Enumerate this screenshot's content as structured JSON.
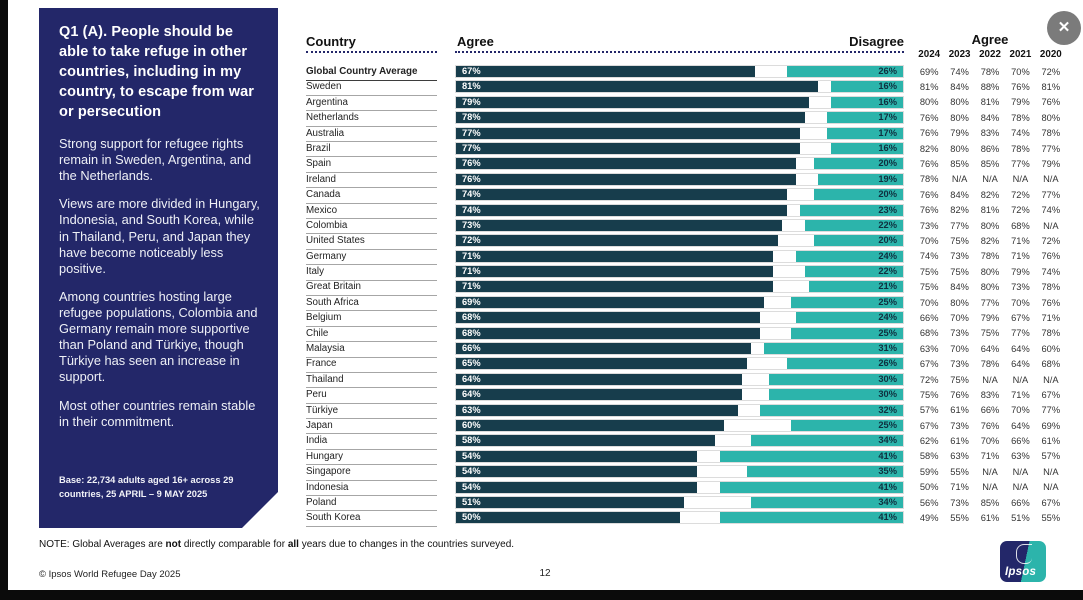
{
  "icons": {
    "close": "✕"
  },
  "panel": {
    "title": "Q1 (A). People should be able to take refuge in other countries, including in my country, to escape from war or persecution",
    "paragraphs": [
      "Strong support for refugee rights remain in Sweden, Argentina, and the Netherlands.",
      "Views are more divided in Hungary, Indonesia, and South Korea, while in Thailand, Peru, and Japan they have become noticeably less positive.",
      "Among countries hosting large refugee populations, Colombia and Germany remain more supportive than Poland and Türkiye, though Türkiye has seen an increase in support.",
      "Most other countries remain stable in their commitment."
    ],
    "base": "Base: 22,734 adults aged 16+ across 29 countries, 25 APRIL – 9 MAY 2025"
  },
  "chart_data": {
    "type": "bar",
    "title": "Q1 (A). People should be able to take refuge in other countries, including in my country, to escape from war or persecution",
    "orientation": "horizontal",
    "xlim": [
      0,
      100
    ],
    "legend_position": "none",
    "colors": {
      "agree_bar": "#173d4c",
      "disagree_bar": "#2cb4ab",
      "panel_navy": "#232769"
    },
    "columns": {
      "country": "Country",
      "agree": "Agree",
      "disagree": "Disagree",
      "years_header": "Agree",
      "years": [
        "2024",
        "2023",
        "2022",
        "2021",
        "2020"
      ]
    },
    "rows": [
      {
        "country": "Global Country Average",
        "agree": 67,
        "disagree": 26,
        "history": [
          "69%",
          "74%",
          "78%",
          "70%",
          "72%"
        ],
        "bold": true
      },
      {
        "country": "Sweden",
        "agree": 81,
        "disagree": 16,
        "history": [
          "81%",
          "84%",
          "88%",
          "76%",
          "81%"
        ]
      },
      {
        "country": "Argentina",
        "agree": 79,
        "disagree": 16,
        "history": [
          "80%",
          "80%",
          "81%",
          "79%",
          "76%"
        ]
      },
      {
        "country": "Netherlands",
        "agree": 78,
        "disagree": 17,
        "history": [
          "76%",
          "80%",
          "84%",
          "78%",
          "80%"
        ]
      },
      {
        "country": "Australia",
        "agree": 77,
        "disagree": 17,
        "history": [
          "76%",
          "79%",
          "83%",
          "74%",
          "78%"
        ]
      },
      {
        "country": "Brazil",
        "agree": 77,
        "disagree": 16,
        "history": [
          "82%",
          "80%",
          "86%",
          "78%",
          "77%"
        ]
      },
      {
        "country": "Spain",
        "agree": 76,
        "disagree": 20,
        "history": [
          "76%",
          "85%",
          "85%",
          "77%",
          "79%"
        ]
      },
      {
        "country": "Ireland",
        "agree": 76,
        "disagree": 19,
        "history": [
          "78%",
          "N/A",
          "N/A",
          "N/A",
          "N/A"
        ]
      },
      {
        "country": "Canada",
        "agree": 74,
        "disagree": 20,
        "history": [
          "76%",
          "84%",
          "82%",
          "72%",
          "77%"
        ]
      },
      {
        "country": "Mexico",
        "agree": 74,
        "disagree": 23,
        "history": [
          "76%",
          "82%",
          "81%",
          "72%",
          "74%"
        ]
      },
      {
        "country": "Colombia",
        "agree": 73,
        "disagree": 22,
        "history": [
          "73%",
          "77%",
          "80%",
          "68%",
          "N/A"
        ]
      },
      {
        "country": "United States",
        "agree": 72,
        "disagree": 20,
        "history": [
          "70%",
          "75%",
          "82%",
          "71%",
          "72%"
        ]
      },
      {
        "country": "Germany",
        "agree": 71,
        "disagree": 24,
        "history": [
          "74%",
          "73%",
          "78%",
          "71%",
          "76%"
        ]
      },
      {
        "country": "Italy",
        "agree": 71,
        "disagree": 22,
        "history": [
          "75%",
          "75%",
          "80%",
          "79%",
          "74%"
        ]
      },
      {
        "country": "Great Britain",
        "agree": 71,
        "disagree": 21,
        "history": [
          "75%",
          "84%",
          "80%",
          "73%",
          "78%"
        ]
      },
      {
        "country": "South Africa",
        "agree": 69,
        "disagree": 25,
        "history": [
          "70%",
          "80%",
          "77%",
          "70%",
          "76%"
        ]
      },
      {
        "country": "Belgium",
        "agree": 68,
        "disagree": 24,
        "history": [
          "66%",
          "70%",
          "79%",
          "67%",
          "71%"
        ]
      },
      {
        "country": "Chile",
        "agree": 68,
        "disagree": 25,
        "history": [
          "68%",
          "73%",
          "75%",
          "77%",
          "78%"
        ]
      },
      {
        "country": "Malaysia",
        "agree": 66,
        "disagree": 31,
        "history": [
          "63%",
          "70%",
          "64%",
          "64%",
          "60%"
        ]
      },
      {
        "country": "France",
        "agree": 65,
        "disagree": 26,
        "history": [
          "67%",
          "73%",
          "78%",
          "64%",
          "68%"
        ]
      },
      {
        "country": "Thailand",
        "agree": 64,
        "disagree": 30,
        "history": [
          "72%",
          "75%",
          "N/A",
          "N/A",
          "N/A"
        ]
      },
      {
        "country": "Peru",
        "agree": 64,
        "disagree": 30,
        "history": [
          "75%",
          "76%",
          "83%",
          "71%",
          "67%"
        ]
      },
      {
        "country": "Türkiye",
        "agree": 63,
        "disagree": 32,
        "history": [
          "57%",
          "61%",
          "66%",
          "70%",
          "77%"
        ]
      },
      {
        "country": "Japan",
        "agree": 60,
        "disagree": 25,
        "history": [
          "67%",
          "73%",
          "76%",
          "64%",
          "69%"
        ]
      },
      {
        "country": "India",
        "agree": 58,
        "disagree": 34,
        "history": [
          "62%",
          "61%",
          "70%",
          "66%",
          "61%"
        ]
      },
      {
        "country": "Hungary",
        "agree": 54,
        "disagree": 41,
        "history": [
          "58%",
          "63%",
          "71%",
          "63%",
          "57%"
        ]
      },
      {
        "country": "Singapore",
        "agree": 54,
        "disagree": 35,
        "history": [
          "59%",
          "55%",
          "N/A",
          "N/A",
          "N/A"
        ]
      },
      {
        "country": "Indonesia",
        "agree": 54,
        "disagree": 41,
        "history": [
          "50%",
          "71%",
          "N/A",
          "N/A",
          "N/A"
        ]
      },
      {
        "country": "Poland",
        "agree": 51,
        "disagree": 34,
        "history": [
          "56%",
          "73%",
          "85%",
          "66%",
          "67%"
        ]
      },
      {
        "country": "South Korea",
        "agree": 50,
        "disagree": 41,
        "history": [
          "49%",
          "55%",
          "61%",
          "51%",
          "55%"
        ]
      }
    ]
  },
  "footer": {
    "note_segments": [
      {
        "t": "NOTE: Global Averages are ",
        "b": false
      },
      {
        "t": "not",
        "b": true
      },
      {
        "t": " directly comparable for ",
        "b": false
      },
      {
        "t": "all",
        "b": true
      },
      {
        "t": " years due to changes in the countries surveyed.",
        "b": false
      }
    ],
    "copyright": "© Ipsos World Refugee Day 2025",
    "page": "12",
    "logo_text": "Ipsos"
  }
}
